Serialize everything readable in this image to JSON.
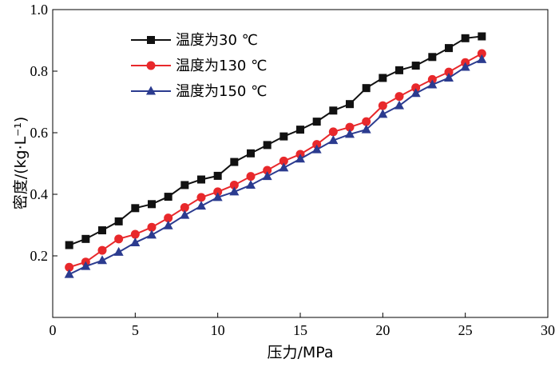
{
  "chart_data": {
    "type": "line",
    "title": "",
    "xlabel": "压力/MPa",
    "ylabel": "密度/(kg·L⁻¹)",
    "xlim": [
      0,
      30
    ],
    "ylim": [
      0.0,
      1.0
    ],
    "xticks": [
      "0",
      "5",
      "10",
      "15",
      "20",
      "25",
      "30"
    ],
    "yticks": [
      "0.2",
      "0.4",
      "0.6",
      "0.8",
      "1.0"
    ],
    "grid": false,
    "legend_position": "top-left",
    "x": [
      1,
      2,
      3,
      4,
      5,
      6,
      7,
      8,
      9,
      10,
      11,
      12,
      13,
      14,
      15,
      16,
      17,
      18,
      19,
      20,
      21,
      22,
      23,
      24,
      25,
      26
    ],
    "series": [
      {
        "name": "温度为30 ℃",
        "color": "#111111",
        "marker": "square",
        "values": [
          0.235,
          0.255,
          0.283,
          0.312,
          0.355,
          0.368,
          0.392,
          0.43,
          0.448,
          0.46,
          0.505,
          0.533,
          0.56,
          0.588,
          0.61,
          0.636,
          0.672,
          0.693,
          0.745,
          0.778,
          0.803,
          0.818,
          0.846,
          0.875,
          0.907,
          0.913
        ]
      },
      {
        "name": "温度为130 ℃",
        "color": "#e8282b",
        "marker": "circle",
        "values": [
          0.163,
          0.18,
          0.218,
          0.255,
          0.27,
          0.293,
          0.323,
          0.357,
          0.39,
          0.408,
          0.43,
          0.458,
          0.478,
          0.508,
          0.53,
          0.562,
          0.603,
          0.618,
          0.636,
          0.688,
          0.718,
          0.746,
          0.773,
          0.797,
          0.828,
          0.857
        ]
      },
      {
        "name": "温度为150 ℃",
        "color": "#2b3b8f",
        "marker": "triangle",
        "values": [
          0.14,
          0.166,
          0.185,
          0.212,
          0.243,
          0.268,
          0.298,
          0.332,
          0.362,
          0.39,
          0.408,
          0.43,
          0.458,
          0.486,
          0.515,
          0.545,
          0.575,
          0.595,
          0.61,
          0.66,
          0.688,
          0.728,
          0.756,
          0.778,
          0.813,
          0.838
        ]
      }
    ]
  }
}
